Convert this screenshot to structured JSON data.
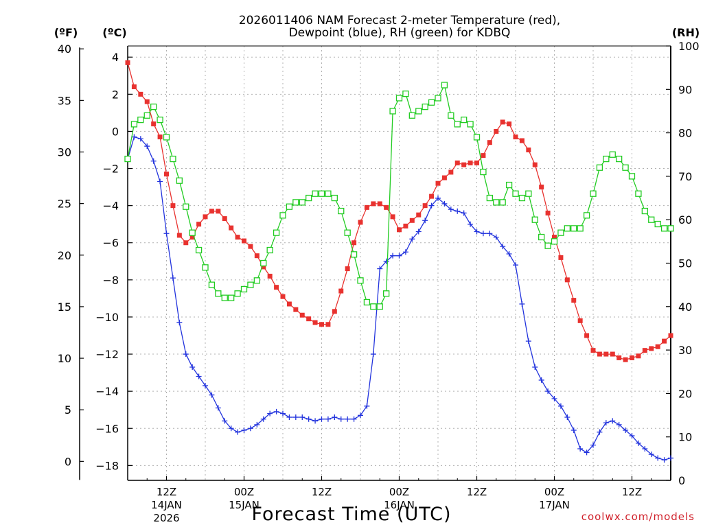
{
  "chart_data": {
    "type": "line",
    "title_line1": "2026011406 NAM Forecast 2-meter Temperature (red),",
    "title_line2": "Dewpoint (blue), RH (green) for KDBQ",
    "xlabel": "Forecast Time (UTC)",
    "credit": "coolwx.com/models",
    "units": {
      "fahrenheit": "(ºF)",
      "celsius": "(ºC)",
      "rh": "(RH)"
    },
    "x_range_hours": [
      0,
      84
    ],
    "celsius_range": [
      -18.8,
      4.6
    ],
    "rh_range": [
      0,
      100
    ],
    "y_ticks_fahrenheit": [
      "40",
      "35",
      "30",
      "25",
      "20",
      "15",
      "10",
      "5",
      "0"
    ],
    "y_ticks_celsius": [
      "4",
      "2",
      "0",
      "−2",
      "−4",
      "−6",
      "−8",
      "−10",
      "−12",
      "−14",
      "−16",
      "−18"
    ],
    "y_ticks_rh": [
      "100",
      "90",
      "80",
      "70",
      "60",
      "50",
      "40",
      "30",
      "20",
      "10",
      "0"
    ],
    "x_ticks": [
      {
        "hour": 6,
        "label": "12Z",
        "date": "14JAN",
        "year": "2026"
      },
      {
        "hour": 18,
        "label": "00Z",
        "date": "15JAN",
        "year": ""
      },
      {
        "hour": 30,
        "label": "12Z",
        "date": "",
        "year": ""
      },
      {
        "hour": 42,
        "label": "00Z",
        "date": "16JAN",
        "year": ""
      },
      {
        "hour": 54,
        "label": "12Z",
        "date": "",
        "year": ""
      },
      {
        "hour": 66,
        "label": "00Z",
        "date": "17JAN",
        "year": ""
      },
      {
        "hour": 78,
        "label": "12Z",
        "date": "",
        "year": ""
      }
    ],
    "series": [
      {
        "name": "2-meter Temperature",
        "unit": "C",
        "color": "#e8322f",
        "marker": "filled-square",
        "x": [
          0,
          1,
          2,
          3,
          4,
          5,
          6,
          7,
          8,
          9,
          10,
          11,
          12,
          13,
          14,
          15,
          16,
          17,
          18,
          19,
          20,
          21,
          22,
          23,
          24,
          25,
          26,
          27,
          28,
          29,
          30,
          31,
          32,
          33,
          34,
          35,
          36,
          37,
          38,
          39,
          40,
          41,
          42,
          43,
          44,
          45,
          46,
          47,
          48,
          49,
          50,
          51,
          52,
          53,
          54,
          55,
          56,
          57,
          58,
          59,
          60,
          61,
          62,
          63,
          64,
          65,
          66,
          67,
          68,
          69,
          70,
          71,
          72,
          73,
          74,
          75,
          76,
          77,
          78,
          79,
          80,
          81,
          82,
          83,
          84
        ],
        "values": [
          3.7,
          2.4,
          2.0,
          1.6,
          0.4,
          -0.3,
          -2.3,
          -4.0,
          -5.6,
          -6.0,
          -5.7,
          -5.0,
          -4.6,
          -4.3,
          -4.3,
          -4.7,
          -5.2,
          -5.7,
          -5.9,
          -6.2,
          -6.7,
          -7.3,
          -7.8,
          -8.4,
          -8.9,
          -9.3,
          -9.6,
          -9.9,
          -10.1,
          -10.3,
          -10.4,
          -10.4,
          -9.7,
          -8.6,
          -7.4,
          -6.0,
          -4.9,
          -4.1,
          -3.9,
          -3.9,
          -4.1,
          -4.6,
          -5.3,
          -5.1,
          -4.8,
          -4.5,
          -4.0,
          -3.5,
          -2.8,
          -2.5,
          -2.2,
          -1.7,
          -1.8,
          -1.7,
          -1.7,
          -1.3,
          -0.6,
          0.0,
          0.5,
          0.4,
          -0.3,
          -0.5,
          -1.0,
          -1.8,
          -3.0,
          -4.4,
          -5.7,
          -6.8,
          -8.0,
          -9.1,
          -10.2,
          -11.0,
          -11.8,
          -12.0,
          -12.0,
          -12.0,
          -12.2,
          -12.3,
          -12.2,
          -12.1,
          -11.8,
          -11.7,
          -11.6,
          -11.3,
          -11.0
        ]
      },
      {
        "name": "Dewpoint",
        "unit": "C",
        "color": "#2233dd",
        "marker": "plus",
        "x": [
          0,
          1,
          2,
          3,
          4,
          5,
          6,
          7,
          8,
          9,
          10,
          11,
          12,
          13,
          14,
          15,
          16,
          17,
          18,
          19,
          20,
          21,
          22,
          23,
          24,
          25,
          26,
          27,
          28,
          29,
          30,
          31,
          32,
          33,
          34,
          35,
          36,
          37,
          38,
          39,
          40,
          41,
          42,
          43,
          44,
          45,
          46,
          47,
          48,
          49,
          50,
          51,
          52,
          53,
          54,
          55,
          56,
          57,
          58,
          59,
          60,
          61,
          62,
          63,
          64,
          65,
          66,
          67,
          68,
          69,
          70,
          71,
          72,
          73,
          74,
          75,
          76,
          77,
          78,
          79,
          80,
          81,
          82,
          83,
          84
        ],
        "values": [
          -1.5,
          -0.3,
          -0.4,
          -0.8,
          -1.6,
          -2.7,
          -5.5,
          -7.9,
          -10.3,
          -12.0,
          -12.7,
          -13.2,
          -13.7,
          -14.2,
          -14.9,
          -15.6,
          -16.0,
          -16.2,
          -16.1,
          -16.0,
          -15.8,
          -15.5,
          -15.2,
          -15.1,
          -15.2,
          -15.4,
          -15.4,
          -15.4,
          -15.5,
          -15.6,
          -15.5,
          -15.5,
          -15.4,
          -15.5,
          -15.5,
          -15.5,
          -15.3,
          -14.8,
          -12.0,
          -7.4,
          -7.0,
          -6.7,
          -6.7,
          -6.5,
          -5.8,
          -5.4,
          -4.8,
          -4.0,
          -3.6,
          -3.9,
          -4.2,
          -4.3,
          -4.4,
          -5.0,
          -5.4,
          -5.5,
          -5.5,
          -5.7,
          -6.2,
          -6.6,
          -7.2,
          -9.3,
          -11.3,
          -12.7,
          -13.4,
          -14.0,
          -14.4,
          -14.8,
          -15.4,
          -16.1,
          -17.1,
          -17.3,
          -16.9,
          -16.2,
          -15.7,
          -15.6,
          -15.8,
          -16.1,
          -16.4,
          -16.8,
          -17.1,
          -17.4,
          -17.6,
          -17.7,
          -17.6
        ]
      },
      {
        "name": "Relative Humidity",
        "unit": "%",
        "color": "#22cc22",
        "marker": "open-square",
        "x": [
          0,
          1,
          2,
          3,
          4,
          5,
          6,
          7,
          8,
          9,
          10,
          11,
          12,
          13,
          14,
          15,
          16,
          17,
          18,
          19,
          20,
          21,
          22,
          23,
          24,
          25,
          26,
          27,
          28,
          29,
          30,
          31,
          32,
          33,
          34,
          35,
          36,
          37,
          38,
          39,
          40,
          41,
          42,
          43,
          44,
          45,
          46,
          47,
          48,
          49,
          50,
          51,
          52,
          53,
          54,
          55,
          56,
          57,
          58,
          59,
          60,
          61,
          62,
          63,
          64,
          65,
          66,
          67,
          68,
          69,
          70,
          71,
          72,
          73,
          74,
          75,
          76,
          77,
          78,
          79,
          80,
          81,
          82,
          83,
          84
        ],
        "values": [
          74,
          82,
          83,
          84,
          86,
          83,
          79,
          74,
          69,
          63,
          57,
          53,
          49,
          45,
          43,
          42,
          42,
          43,
          44,
          45,
          46,
          50,
          53,
          57,
          61,
          63,
          64,
          64,
          65,
          66,
          66,
          66,
          65,
          62,
          57,
          52,
          46,
          41,
          40,
          40,
          43,
          85,
          88,
          89,
          84,
          85,
          86,
          87,
          88,
          91,
          84,
          82,
          83,
          82,
          79,
          71,
          65,
          64,
          64,
          68,
          66,
          65,
          66,
          60,
          56,
          54,
          55,
          57,
          58,
          58,
          58,
          61,
          66,
          72,
          74,
          75,
          74,
          72,
          70,
          66,
          62,
          60,
          59,
          58,
          58
        ]
      }
    ]
  }
}
